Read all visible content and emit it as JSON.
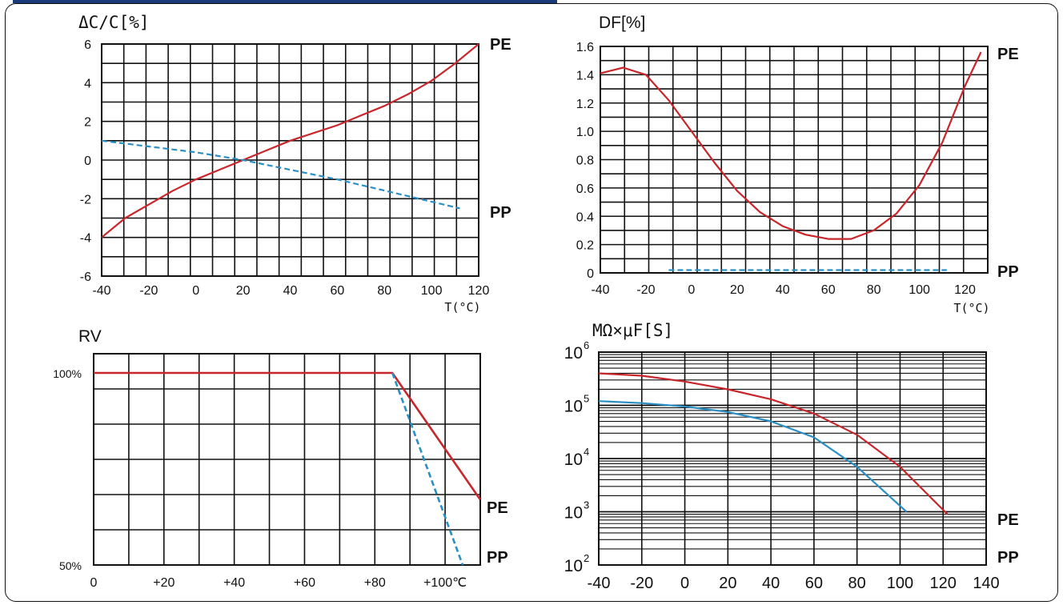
{
  "colors": {
    "pe": "#c8262b",
    "pp": "#2a8fc4",
    "grid": "#111111"
  },
  "chart_data": [
    {
      "type": "line",
      "title": "ΔC/C[%]",
      "xlabel": "T(°C)",
      "xlim": [
        -40,
        120
      ],
      "ylim": [
        -6,
        6
      ],
      "xticks": [
        -40,
        -20,
        0,
        20,
        40,
        60,
        80,
        100,
        120
      ],
      "xtick_labels": [
        "-40",
        "-20",
        "0",
        "20",
        "40",
        "60",
        "80",
        "100",
        "120"
      ],
      "yticks": [
        -6,
        -4,
        -2,
        0,
        2,
        4,
        6
      ],
      "ytick_labels": [
        "-6",
        "-4",
        "-2",
        "0",
        "2",
        "4",
        "6"
      ],
      "series": [
        {
          "name": "PE",
          "style": "solid",
          "x": [
            -40,
            -30,
            -20,
            -10,
            0,
            10,
            20,
            30,
            40,
            50,
            60,
            70,
            80,
            90,
            100,
            110,
            120
          ],
          "y": [
            -4.0,
            -3.0,
            -2.3,
            -1.6,
            -1.0,
            -0.5,
            0.0,
            0.5,
            1.0,
            1.4,
            1.8,
            2.3,
            2.8,
            3.4,
            4.1,
            5.0,
            6.0
          ]
        },
        {
          "name": "PP",
          "style": "dashed",
          "x": [
            -40,
            0,
            20,
            60,
            112
          ],
          "y": [
            1.0,
            0.4,
            0.0,
            -1.0,
            -2.5
          ]
        }
      ]
    },
    {
      "type": "line",
      "title": "DF[%]",
      "xlabel": "T(°C)",
      "xlim": [
        -40,
        130
      ],
      "ylim": [
        0,
        1.6
      ],
      "xticks": [
        -40,
        -20,
        0,
        20,
        40,
        60,
        80,
        100,
        120
      ],
      "xtick_labels": [
        "-40",
        "-20",
        "0",
        "20",
        "40",
        "60",
        "80",
        "100",
        "120"
      ],
      "yticks": [
        0,
        0.2,
        0.4,
        0.6,
        0.8,
        1.0,
        1.2,
        1.4,
        1.6
      ],
      "ytick_labels": [
        "0",
        "0.2",
        "0.4",
        "0.6",
        "0.8",
        "1.0",
        "1.2",
        "1.4",
        "1.6"
      ],
      "series": [
        {
          "name": "PE",
          "style": "solid",
          "x": [
            -40,
            -30,
            -20,
            -10,
            0,
            10,
            20,
            30,
            40,
            50,
            60,
            70,
            80,
            90,
            100,
            110,
            120,
            127
          ],
          "y": [
            1.41,
            1.45,
            1.4,
            1.22,
            1.0,
            0.78,
            0.58,
            0.43,
            0.33,
            0.27,
            0.24,
            0.24,
            0.3,
            0.42,
            0.62,
            0.92,
            1.32,
            1.56
          ]
        },
        {
          "name": "PP",
          "style": "dashed",
          "x": [
            -10,
            112
          ],
          "y": [
            0.02,
            0.02
          ]
        }
      ]
    },
    {
      "type": "line",
      "title": "RV",
      "xlim": [
        0,
        110
      ],
      "ylim": [
        50,
        105
      ],
      "xticks": [
        0,
        20,
        40,
        60,
        80,
        100
      ],
      "xtick_labels": [
        "0",
        "+20",
        "+40",
        "+60",
        "+80",
        "+100℃"
      ],
      "yticks": [
        100,
        50
      ],
      "ytick_labels": [
        "100%",
        "50%"
      ],
      "series": [
        {
          "name": "PE",
          "style": "solid",
          "x": [
            0,
            85,
            110
          ],
          "y": [
            100,
            100,
            67
          ]
        },
        {
          "name": "PP",
          "style": "dashed",
          "x": [
            85,
            105
          ],
          "y": [
            100,
            50
          ]
        }
      ]
    },
    {
      "type": "line",
      "title": "MΩ×μF[S]",
      "yscale": "log",
      "xlim": [
        -40,
        140
      ],
      "ylim": [
        100,
        1000000
      ],
      "xticks": [
        -40,
        -20,
        0,
        20,
        40,
        60,
        80,
        100,
        120,
        140
      ],
      "xtick_labels": [
        "-40",
        "-20",
        "0",
        "20",
        "40",
        "60",
        "80",
        "100",
        "120",
        "140"
      ],
      "yticks": [
        100,
        1000,
        10000,
        100000,
        1000000
      ],
      "ytick_labels": [
        "10",
        "10",
        "10",
        "10",
        "10"
      ],
      "ytick_exponents": [
        "2",
        "3",
        "4",
        "5",
        "6"
      ],
      "series": [
        {
          "name": "PE",
          "style": "solid",
          "x": [
            -40,
            -20,
            0,
            20,
            40,
            60,
            80,
            100,
            122
          ],
          "y": [
            400000,
            360000,
            280000,
            200000,
            130000,
            70000,
            28000,
            7000,
            900
          ]
        },
        {
          "name": "PP",
          "style": "solid",
          "x": [
            -40,
            -20,
            0,
            20,
            40,
            60,
            80,
            103
          ],
          "y": [
            120000,
            110000,
            95000,
            75000,
            50000,
            25000,
            7000,
            1000
          ]
        }
      ]
    }
  ]
}
